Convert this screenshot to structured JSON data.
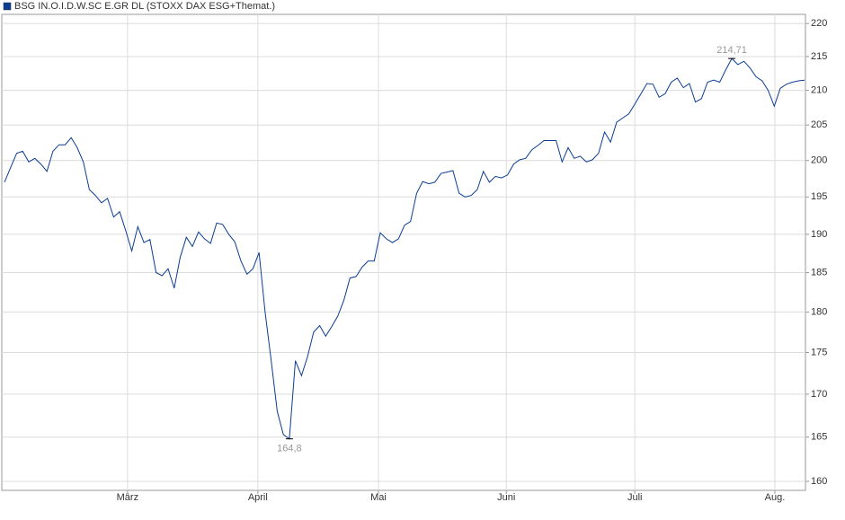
{
  "chart_data": {
    "type": "line",
    "title": "BSG IN.O.I.D.W.SC E.GR DL (STOXX DAX ESG+Themat.)",
    "color": "#0b3d91",
    "log_scale": true,
    "grid": true,
    "values": [
      197,
      199,
      201,
      201.3,
      199.8,
      200.3,
      199.5,
      198.5,
      201.3,
      202.2,
      202.2,
      203.2,
      201.8,
      199.8,
      196,
      195.2,
      194.2,
      194.8,
      192.3,
      193,
      190.5,
      187.8,
      191,
      188.9,
      189.3,
      185,
      184.6,
      185.5,
      183,
      187,
      189.6,
      188.4,
      190.3,
      189.4,
      188.8,
      191.5,
      191.3,
      190,
      189,
      186.5,
      184.8,
      185.5,
      187.6,
      180,
      174,
      168,
      165.3,
      164.8,
      174,
      172.2,
      174.5,
      177.5,
      178.3,
      177,
      178.2,
      179.5,
      181.5,
      184.3,
      184.5,
      185.7,
      186.5,
      186.5,
      190.2,
      189.4,
      188.9,
      189.4,
      191.2,
      191.7,
      195.5,
      197.1,
      196.8,
      197,
      198.2,
      198.4,
      198.6,
      195.5,
      195,
      195.2,
      196,
      198.5,
      197,
      197.8,
      197.6,
      198,
      199.5,
      200.1,
      200.3,
      201.5,
      202.1,
      202.8,
      202.8,
      202.8,
      199.8,
      201.8,
      200.3,
      200.6,
      199.8,
      200.1,
      201,
      204,
      202.6,
      205.4,
      206,
      206.6,
      208,
      209.5,
      211,
      210.9,
      209,
      209.5,
      211.2,
      211.8,
      210.4,
      211,
      208.3,
      208.8,
      211.2,
      211.5,
      211.2,
      213,
      214.71,
      213.8,
      214.3,
      213.3,
      212,
      211.4,
      210,
      207.7,
      210.3,
      210.9,
      211.2,
      211.4,
      211.5
    ],
    "annotations": [
      {
        "value": 214.71,
        "label": "214,71"
      },
      {
        "value": 164.8,
        "label": "164,8"
      }
    ],
    "xlim": [
      0,
      132
    ],
    "xticks": [
      {
        "value": 20.3,
        "label": "März"
      },
      {
        "value": 41.8,
        "label": "April"
      },
      {
        "value": 61.7,
        "label": "Mai"
      },
      {
        "value": 82.8,
        "label": "Juni"
      },
      {
        "value": 104,
        "label": "Juli"
      },
      {
        "value": 127.1,
        "label": "Aug."
      }
    ],
    "ylim": [
      159,
      221.4
    ],
    "yticks": [
      160,
      165,
      170,
      175,
      180,
      185,
      190,
      195,
      200,
      205,
      210,
      215,
      220
    ]
  }
}
